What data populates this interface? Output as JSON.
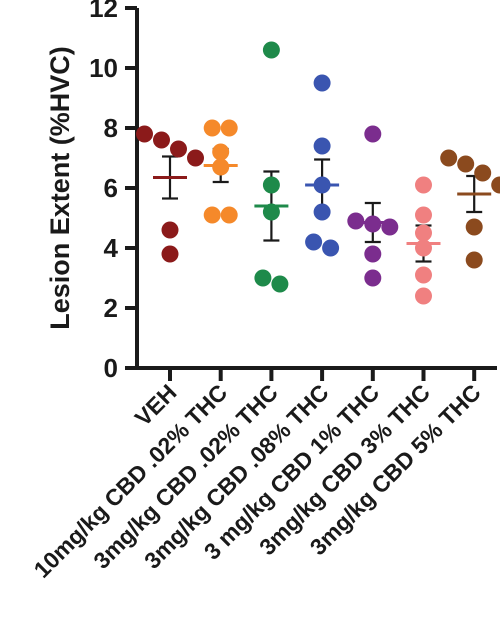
{
  "chart_data": {
    "type": "scatter",
    "ylabel": "Lesion Extent (%HVC)",
    "xlabel": "",
    "title": "",
    "ylim": [
      0,
      12
    ],
    "yticks": [
      0,
      2,
      4,
      6,
      8,
      10,
      12
    ],
    "grid": false,
    "categories": [
      "VEH",
      "10mg/kg CBD .02% THC",
      "3mg/kg CBD .02% THC",
      "3mg/kg CBD .08% THC",
      "3 mg/kg CBD 1% THC",
      "3mg/kg CBD 3% THC",
      "3mg/kg CBD 5% THC"
    ],
    "groups": [
      {
        "color": "#8B1A1A",
        "mean": 6.35,
        "sem": 0.7,
        "points": [
          7.6,
          7.8,
          7.3,
          7.0,
          4.6,
          3.8
        ]
      },
      {
        "color": "#F5892A",
        "mean": 6.75,
        "sem": 0.55,
        "points": [
          8.0,
          8.0,
          7.2,
          6.7,
          5.1,
          5.1
        ]
      },
      {
        "color": "#1E8A4A",
        "mean": 5.4,
        "sem": 1.15,
        "points": [
          10.6,
          6.1,
          5.2,
          3.0,
          2.8
        ]
      },
      {
        "color": "#3A55B0",
        "mean": 6.1,
        "sem": 0.85,
        "points": [
          9.5,
          7.4,
          6.1,
          5.2,
          4.2,
          4.0
        ]
      },
      {
        "color": "#7B2D8E",
        "mean": 4.85,
        "sem": 0.65,
        "points": [
          7.8,
          4.9,
          4.8,
          4.7,
          3.8,
          3.0
        ]
      },
      {
        "color": "#F08080",
        "mean": 4.15,
        "sem": 0.6,
        "points": [
          6.1,
          5.1,
          4.5,
          3.1,
          2.4,
          4.0
        ]
      },
      {
        "color": "#8B4A1E",
        "mean": 5.8,
        "sem": 0.6,
        "points": [
          7.0,
          6.8,
          6.5,
          6.1,
          4.7,
          3.6
        ]
      }
    ]
  }
}
